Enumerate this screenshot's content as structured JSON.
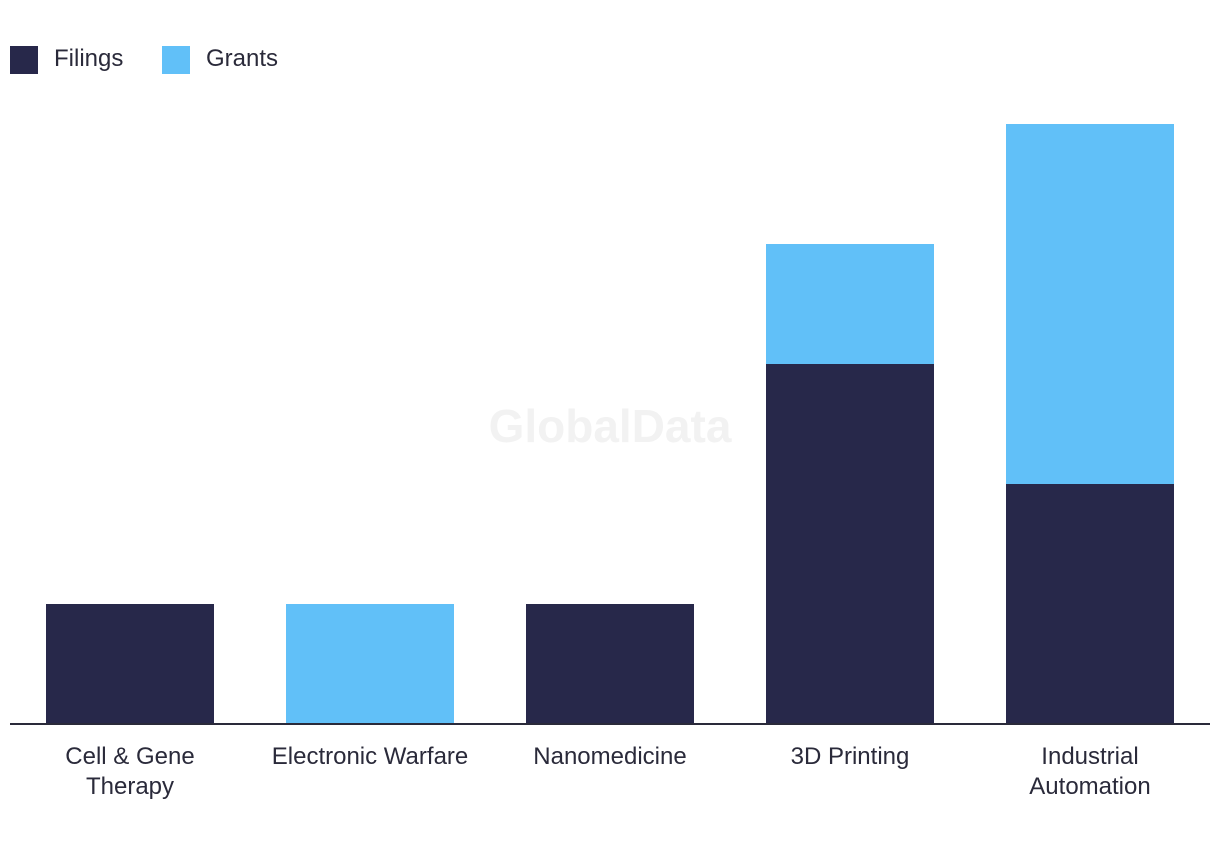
{
  "chart_data": {
    "type": "bar",
    "stacked": true,
    "title": "",
    "xlabel": "",
    "ylabel": "",
    "categories": [
      [
        "Cell & Gene",
        "Therapy"
      ],
      [
        "Electronic Warfare"
      ],
      [
        "Nanomedicine"
      ],
      [
        "3D Printing"
      ],
      [
        "Industrial",
        "Automation"
      ]
    ],
    "series": [
      {
        "name": "Filings",
        "color": "#27284a",
        "values": [
          1,
          0,
          1,
          3,
          2
        ]
      },
      {
        "name": "Grants",
        "color": "#61c0f8",
        "values": [
          0,
          1,
          0,
          1,
          3
        ]
      }
    ],
    "ylim": [
      0,
      5
    ],
    "grid": false,
    "legend_position": "top-left"
  },
  "watermark": "GlobalData"
}
